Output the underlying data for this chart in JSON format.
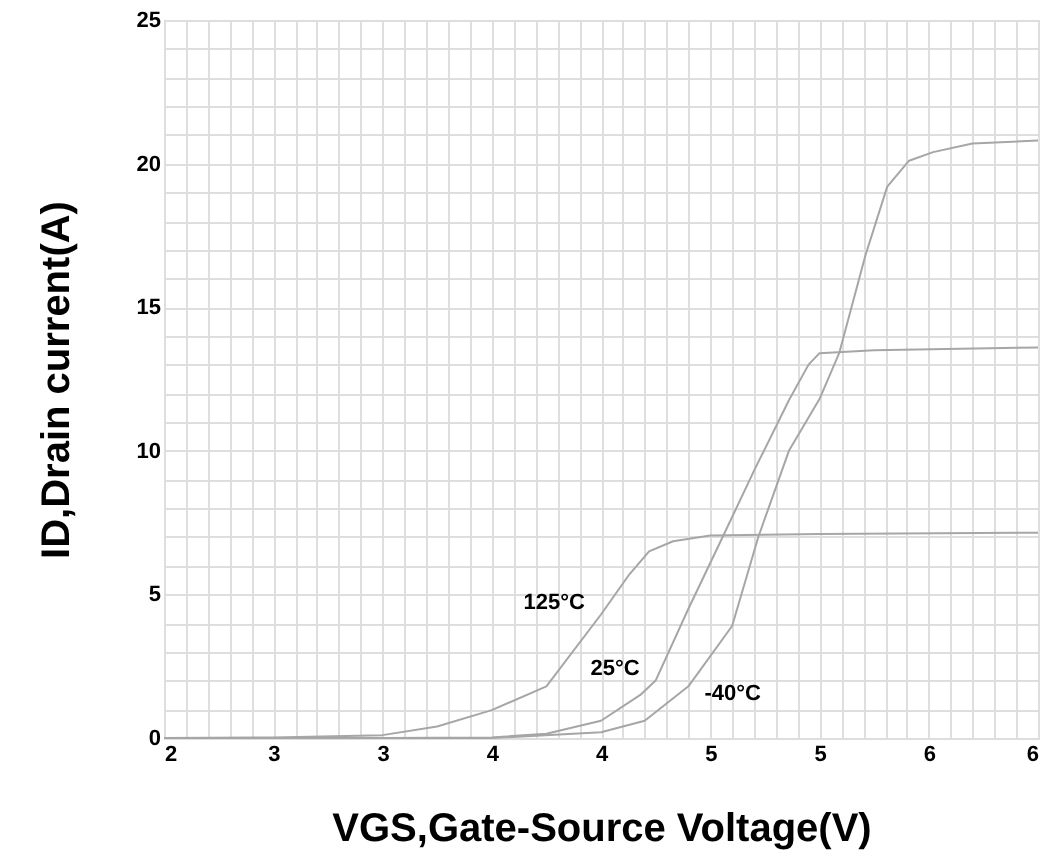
{
  "chart_data": {
    "type": "line",
    "xlabel": "VGS,Gate-Source Voltage(V)",
    "ylabel": "ID,Drain current(A)",
    "xlim": [
      2,
      6
    ],
    "ylim": [
      0,
      25
    ],
    "grid": true,
    "marker": "none",
    "line_style": "solid",
    "xticks": [
      2,
      {
        "value": 2.1,
        "label": null
      },
      {
        "value": 2.2,
        "label": null
      },
      {
        "value": 2.3,
        "label": null
      },
      {
        "value": 2.4,
        "label": null
      },
      {
        "value": 2.5,
        "label": "3"
      },
      {
        "value": 2.6,
        "label": null
      },
      {
        "value": 2.7,
        "label": null
      },
      {
        "value": 2.8,
        "label": null
      },
      {
        "value": 2.9,
        "label": null
      },
      3,
      {
        "value": 3.1,
        "label": null
      },
      {
        "value": 3.2,
        "label": null
      },
      {
        "value": 3.3,
        "label": null
      },
      {
        "value": 3.4,
        "label": null
      },
      {
        "value": 3.5,
        "label": "4"
      },
      {
        "value": 3.6,
        "label": null
      },
      {
        "value": 3.7,
        "label": null
      },
      {
        "value": 3.8,
        "label": null
      },
      {
        "value": 3.9,
        "label": null
      },
      4,
      {
        "value": 4.1,
        "label": null
      },
      {
        "value": 4.2,
        "label": null
      },
      {
        "value": 4.3,
        "label": null
      },
      {
        "value": 4.4,
        "label": null
      },
      {
        "value": 4.5,
        "label": "5"
      },
      {
        "value": 4.6,
        "label": null
      },
      {
        "value": 4.7,
        "label": null
      },
      {
        "value": 4.8,
        "label": null
      },
      {
        "value": 4.9,
        "label": null
      },
      5,
      {
        "value": 5.1,
        "label": null
      },
      {
        "value": 5.2,
        "label": null
      },
      {
        "value": 5.3,
        "label": null
      },
      {
        "value": 5.4,
        "label": null
      },
      {
        "value": 5.5,
        "label": "6"
      },
      {
        "value": 5.6,
        "label": null
      },
      {
        "value": 5.7,
        "label": null
      },
      {
        "value": 5.8,
        "label": null
      },
      {
        "value": 5.9,
        "label": null
      },
      6
    ],
    "yticks": [
      0,
      {
        "value": 1,
        "label": null
      },
      {
        "value": 2,
        "label": null
      },
      {
        "value": 3,
        "label": null
      },
      {
        "value": 4,
        "label": null
      },
      5,
      {
        "value": 6,
        "label": null
      },
      {
        "value": 7,
        "label": null
      },
      {
        "value": 8,
        "label": null
      },
      {
        "value": 9,
        "label": null
      },
      10,
      {
        "value": 11,
        "label": null
      },
      {
        "value": 12,
        "label": null
      },
      {
        "value": 13,
        "label": null
      },
      {
        "value": 14,
        "label": null
      },
      15,
      {
        "value": 16,
        "label": null
      },
      {
        "value": 17,
        "label": null
      },
      {
        "value": 18,
        "label": null
      },
      {
        "value": 19,
        "label": null
      },
      20,
      {
        "value": 21,
        "label": null
      },
      {
        "value": 22,
        "label": null
      },
      {
        "value": 23,
        "label": null
      },
      {
        "value": 24,
        "label": null
      },
      25
    ],
    "series": [
      {
        "name": "125°C",
        "color": "#a6a6a6",
        "x": [
          2,
          2.5,
          3,
          3.25,
          3.5,
          3.75,
          4,
          4.13,
          4.22,
          4.33,
          4.5,
          5,
          6
        ],
        "values": [
          0,
          0.02,
          0.1,
          0.4,
          0.97,
          1.8,
          4.3,
          5.7,
          6.5,
          6.85,
          7.05,
          7.1,
          7.15
        ]
      },
      {
        "name": "25°C",
        "color": "#a6a6a6",
        "x": [
          2,
          3,
          3.5,
          3.75,
          4,
          4.18,
          4.25,
          4.4,
          4.56,
          4.7,
          4.86,
          4.95,
          5,
          5.25,
          6
        ],
        "values": [
          0,
          0,
          0.02,
          0.15,
          0.6,
          1.5,
          2.0,
          4.5,
          7.05,
          9.3,
          11.76,
          13.0,
          13.4,
          13.5,
          13.6
        ]
      },
      {
        "name": "-40°C",
        "color": "#a6a6a6",
        "x": [
          2,
          3.5,
          4,
          4.2,
          4.4,
          4.6,
          4.72,
          4.86,
          5,
          5.09,
          5.21,
          5.31,
          5.41,
          5.52,
          5.7,
          6
        ],
        "values": [
          0,
          0,
          0.2,
          0.6,
          1.8,
          3.9,
          7.0,
          10,
          11.8,
          13.4,
          16.8,
          19.2,
          20.1,
          20.4,
          20.7,
          20.8
        ]
      }
    ]
  }
}
